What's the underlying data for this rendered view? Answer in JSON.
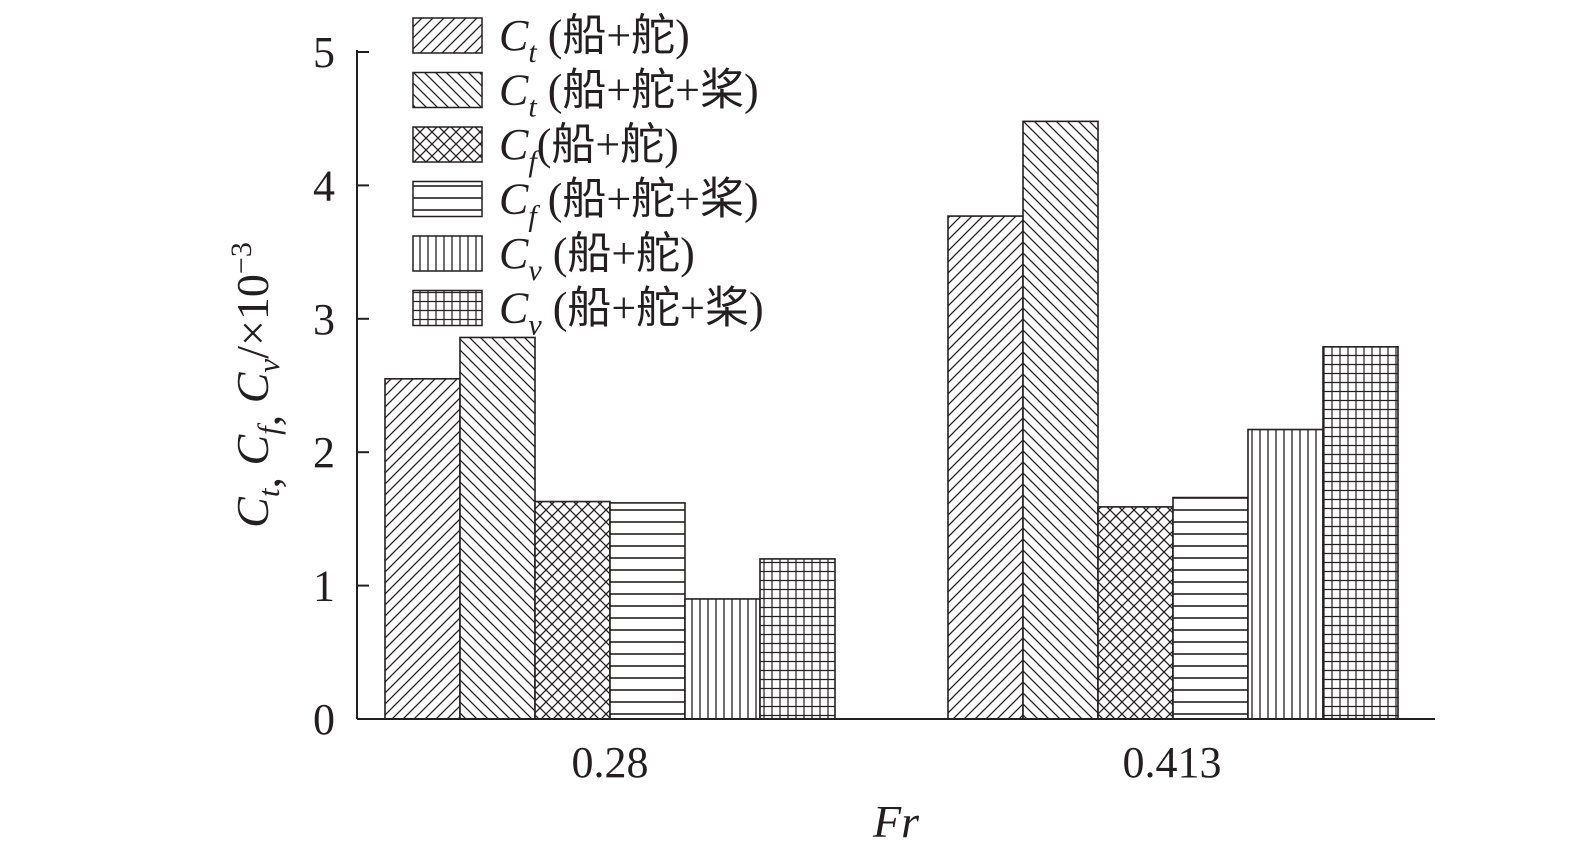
{
  "chart_data": {
    "type": "bar",
    "x_axis_title": "Fr",
    "y_axis_title": {
      "symbols": [
        "C",
        "C",
        "C"
      ],
      "subscripts": [
        "t",
        "f",
        "v"
      ],
      "separator": ",",
      "unit": "/×10",
      "exponent": "−3"
    },
    "ylim": [
      0,
      5
    ],
    "yticks": [
      "0",
      "1",
      "2",
      "3",
      "4",
      "5"
    ],
    "grid": false,
    "legend_position": "top-left",
    "categories": [
      "0.28",
      "0.413"
    ],
    "series": [
      {
        "symbol": "C",
        "sub": "t",
        "cn": " (船+舵)",
        "pattern": "diag-up",
        "values": [
          2.55,
          3.77
        ]
      },
      {
        "symbol": "C",
        "sub": "t",
        "cn": " (船+舵+桨)",
        "pattern": "diag-down",
        "values": [
          2.86,
          4.48
        ]
      },
      {
        "symbol": "C",
        "sub": "f",
        "cn": "(船+舵)",
        "pattern": "crosshatch",
        "values": [
          1.63,
          1.59
        ]
      },
      {
        "symbol": "C",
        "sub": "f",
        "cn": " (船+舵+桨)",
        "pattern": "horizontal",
        "values": [
          1.62,
          1.66
        ]
      },
      {
        "symbol": "C",
        "sub": "v",
        "cn": " (船+舵)",
        "pattern": "vertical",
        "values": [
          0.9,
          2.17
        ]
      },
      {
        "symbol": "C",
        "sub": "v",
        "cn": " (船+舵+桨)",
        "pattern": "grid",
        "values": [
          1.2,
          2.79
        ]
      }
    ]
  }
}
